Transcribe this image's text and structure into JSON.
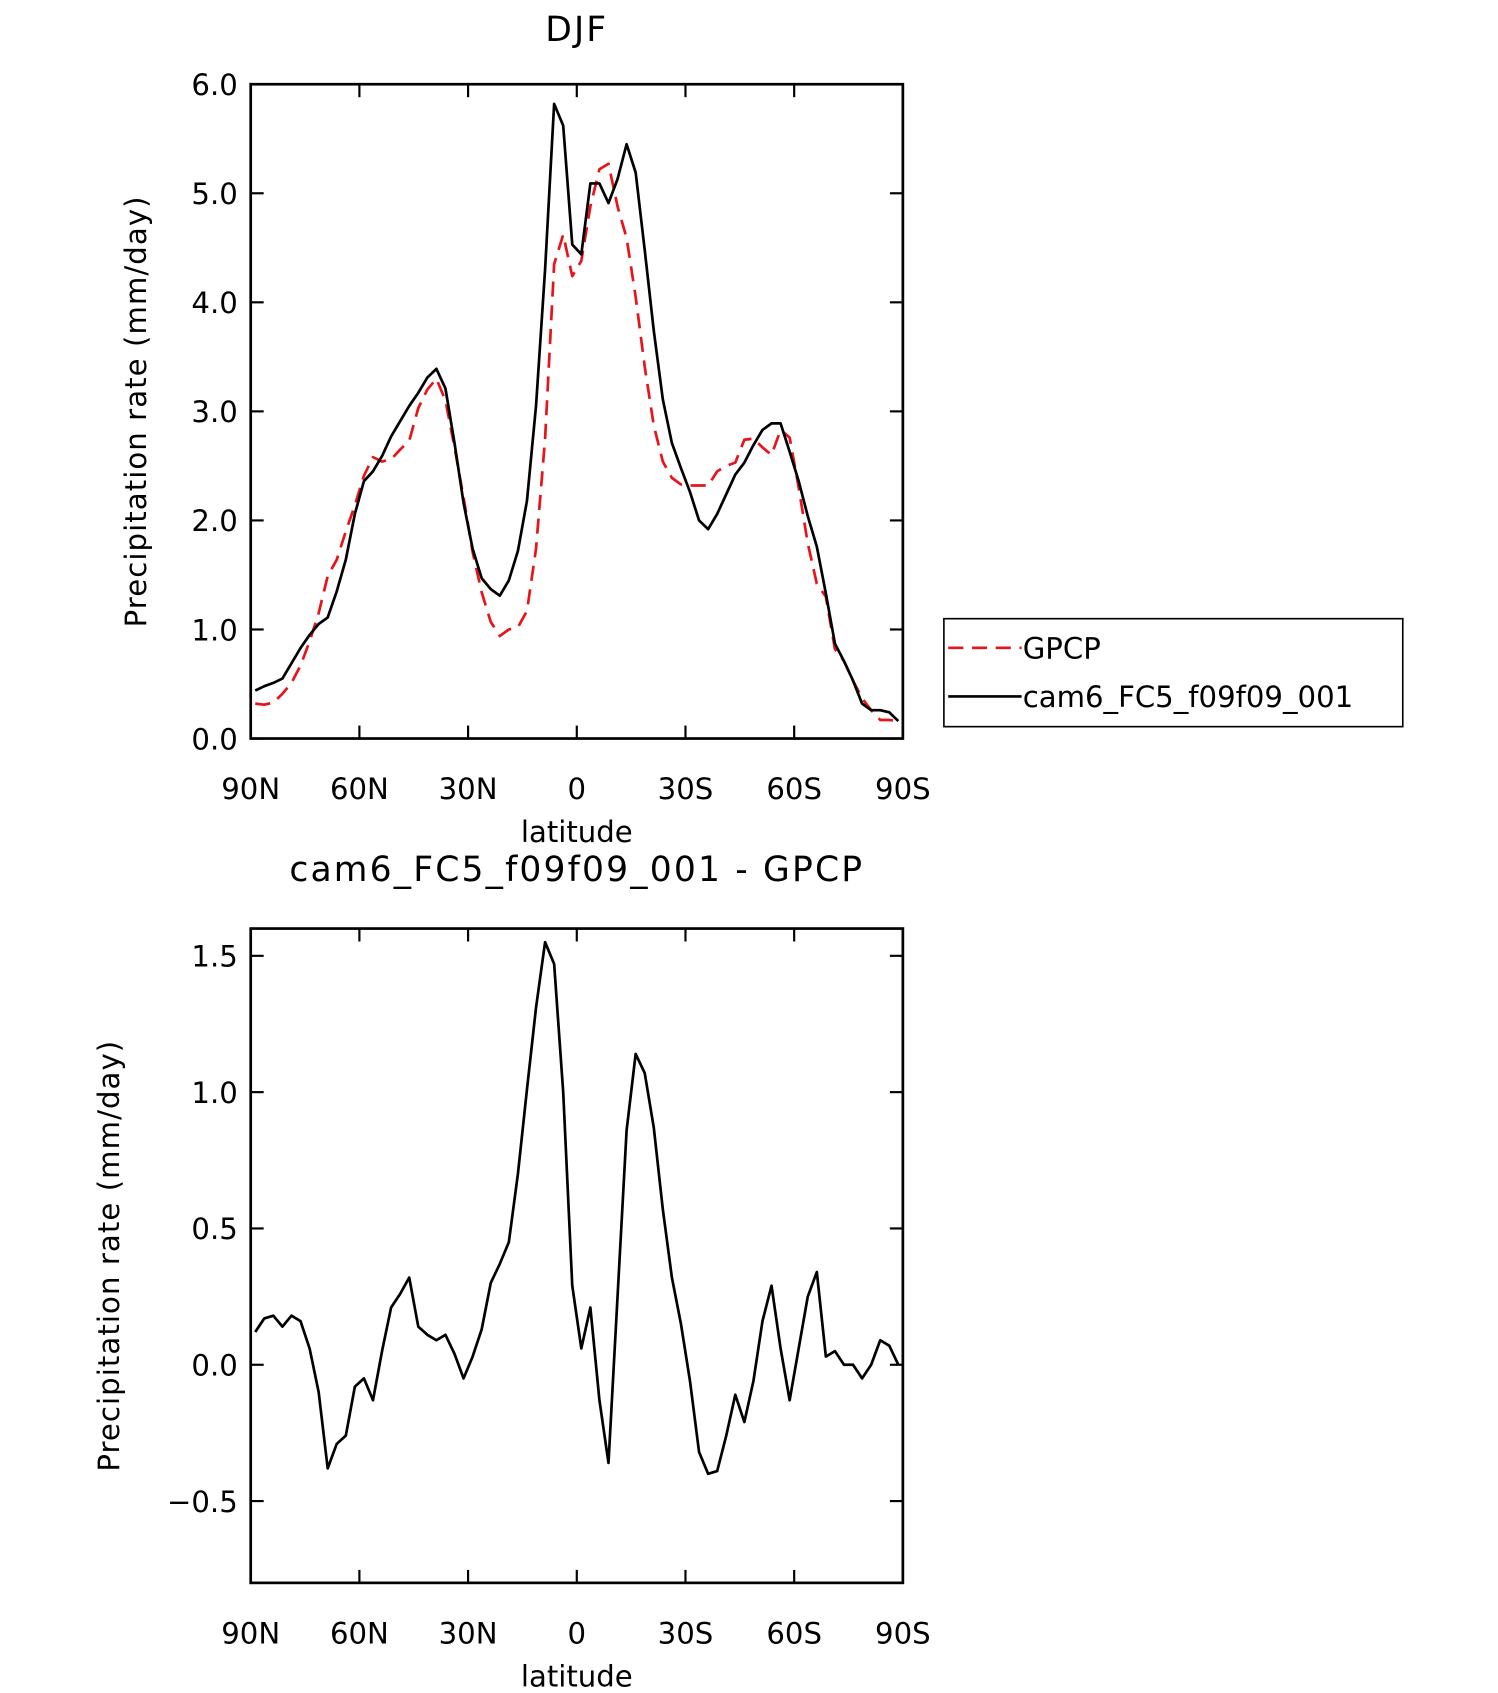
{
  "chart_data": [
    {
      "type": "line",
      "title": "DJF",
      "xlabel": "latitude",
      "ylabel": "Precipitation rate (mm/day)",
      "x": [
        88.75,
        86.25,
        83.75,
        81.25,
        78.75,
        76.25,
        73.75,
        71.25,
        68.75,
        66.25,
        63.75,
        61.25,
        58.75,
        56.25,
        53.75,
        51.25,
        48.75,
        46.25,
        43.75,
        41.25,
        38.75,
        36.25,
        33.75,
        31.25,
        28.75,
        26.25,
        23.75,
        21.25,
        18.75,
        16.25,
        13.75,
        11.25,
        8.75,
        6.25,
        3.75,
        1.25,
        -1.25,
        -3.75,
        -6.25,
        -8.75,
        -11.25,
        -13.75,
        -16.25,
        -18.75,
        -21.25,
        -23.75,
        -26.25,
        -28.75,
        -31.25,
        -33.75,
        -36.25,
        -38.75,
        -41.25,
        -43.75,
        -46.25,
        -48.75,
        -51.25,
        -53.75,
        -56.25,
        -58.75,
        -61.25,
        -63.75,
        -66.25,
        -68.75,
        -71.25,
        -73.75,
        -76.25,
        -78.75,
        -81.25,
        -83.75,
        -86.25,
        -88.75
      ],
      "series": [
        {
          "name": "GPCP",
          "color": "#e8141a",
          "linestyle": "dashed",
          "values": [
            0.32,
            0.31,
            0.33,
            0.41,
            0.51,
            0.67,
            0.89,
            1.15,
            1.49,
            1.64,
            1.9,
            2.14,
            2.41,
            2.58,
            2.54,
            2.56,
            2.65,
            2.73,
            3.03,
            3.2,
            3.3,
            3.1,
            2.67,
            2.21,
            1.71,
            1.34,
            1.07,
            0.94,
            1.0,
            1.02,
            1.17,
            1.74,
            2.75,
            4.35,
            4.62,
            4.24,
            4.38,
            4.88,
            5.22,
            5.27,
            4.88,
            4.59,
            4.05,
            3.41,
            2.87,
            2.54,
            2.39,
            2.33,
            2.32,
            2.32,
            2.32,
            2.45,
            2.5,
            2.53,
            2.74,
            2.75,
            2.67,
            2.6,
            2.83,
            2.76,
            2.3,
            1.79,
            1.42,
            1.3,
            0.82,
            0.71,
            0.53,
            0.37,
            0.26,
            0.17,
            0.17,
            0.16
          ]
        },
        {
          "name": "cam6_FC5_f09f09_001",
          "color": "#000000",
          "linestyle": "solid",
          "values": [
            0.44,
            0.48,
            0.51,
            0.55,
            0.69,
            0.83,
            0.95,
            1.05,
            1.11,
            1.35,
            1.64,
            2.06,
            2.36,
            2.45,
            2.59,
            2.77,
            2.91,
            3.05,
            3.17,
            3.31,
            3.39,
            3.21,
            2.71,
            2.16,
            1.74,
            1.47,
            1.37,
            1.31,
            1.45,
            1.72,
            2.18,
            3.05,
            4.3,
            5.82,
            5.62,
            4.53,
            4.44,
            5.09,
            5.09,
            4.91,
            5.13,
            5.45,
            5.19,
            4.48,
            3.74,
            3.11,
            2.71,
            2.48,
            2.26,
            2.0,
            1.92,
            2.06,
            2.24,
            2.42,
            2.53,
            2.69,
            2.83,
            2.89,
            2.89,
            2.63,
            2.36,
            2.04,
            1.76,
            1.33,
            0.87,
            0.71,
            0.53,
            0.32,
            0.26,
            0.26,
            0.24,
            0.16
          ]
        }
      ],
      "xlim": [
        90,
        -90
      ],
      "xticks": [
        {
          "value": 90,
          "label": "90N"
        },
        {
          "value": 60,
          "label": "60N"
        },
        {
          "value": 30,
          "label": "30N"
        },
        0,
        {
          "value": -30,
          "label": "30S"
        },
        {
          "value": -60,
          "label": "60S"
        },
        {
          "value": -90,
          "label": "90S"
        }
      ],
      "ylim": [
        0,
        6
      ],
      "yticks": [
        {
          "value": 0,
          "label": "0.0"
        },
        {
          "value": 1,
          "label": "1.0"
        },
        {
          "value": 2,
          "label": "2.0"
        },
        {
          "value": 3,
          "label": "3.0"
        },
        {
          "value": 4,
          "label": "4.0"
        },
        {
          "value": 5,
          "label": "5.0"
        },
        {
          "value": 6,
          "label": "6.0"
        }
      ],
      "legend": "right"
    },
    {
      "type": "line",
      "title": "cam6_FC5_f09f09_001 - GPCP",
      "xlabel": "latitude",
      "ylabel": "Precipitation rate (mm/day)",
      "x": [
        88.75,
        86.25,
        83.75,
        81.25,
        78.75,
        76.25,
        73.75,
        71.25,
        68.75,
        66.25,
        63.75,
        61.25,
        58.75,
        56.25,
        53.75,
        51.25,
        48.75,
        46.25,
        43.75,
        41.25,
        38.75,
        36.25,
        33.75,
        31.25,
        28.75,
        26.25,
        23.75,
        21.25,
        18.75,
        16.25,
        13.75,
        11.25,
        8.75,
        6.25,
        3.75,
        1.25,
        -1.25,
        -3.75,
        -6.25,
        -8.75,
        -11.25,
        -13.75,
        -16.25,
        -18.75,
        -21.25,
        -23.75,
        -26.25,
        -28.75,
        -31.25,
        -33.75,
        -36.25,
        -38.75,
        -41.25,
        -43.75,
        -46.25,
        -48.75,
        -51.25,
        -53.75,
        -56.25,
        -58.75,
        -61.25,
        -63.75,
        -66.25,
        -68.75,
        -71.25,
        -73.75,
        -76.25,
        -78.75,
        -81.25,
        -83.75,
        -86.25,
        -88.75
      ],
      "series": [
        {
          "color": "#000000",
          "linestyle": "solid",
          "values": [
            0.12,
            0.17,
            0.18,
            0.14,
            0.18,
            0.16,
            0.06,
            -0.1,
            -0.38,
            -0.29,
            -0.26,
            -0.08,
            -0.05,
            -0.13,
            0.05,
            0.21,
            0.26,
            0.32,
            0.14,
            0.11,
            0.09,
            0.11,
            0.04,
            -0.05,
            0.03,
            0.13,
            0.3,
            0.37,
            0.45,
            0.7,
            1.01,
            1.31,
            1.55,
            1.47,
            1.0,
            0.29,
            0.06,
            0.21,
            -0.13,
            -0.36,
            0.25,
            0.86,
            1.14,
            1.07,
            0.87,
            0.57,
            0.32,
            0.15,
            -0.06,
            -0.32,
            -0.4,
            -0.39,
            -0.26,
            -0.11,
            -0.21,
            -0.06,
            0.16,
            0.29,
            0.06,
            -0.13,
            0.06,
            0.25,
            0.34,
            0.03,
            0.05,
            0.0,
            0.0,
            -0.05,
            0.0,
            0.09,
            0.07,
            0.0
          ]
        }
      ],
      "xlim": [
        90,
        -90
      ],
      "xticks": [
        {
          "value": 90,
          "label": "90N"
        },
        {
          "value": 60,
          "label": "60N"
        },
        {
          "value": 30,
          "label": "30N"
        },
        0,
        {
          "value": -30,
          "label": "30S"
        },
        {
          "value": -60,
          "label": "60S"
        },
        {
          "value": -90,
          "label": "90S"
        }
      ],
      "ylim": [
        -0.8,
        1.6
      ],
      "yticks": [
        {
          "value": -0.5,
          "label": "−0.5"
        },
        {
          "value": 0,
          "label": "0.0"
        },
        {
          "value": 0.5,
          "label": "0.5"
        },
        {
          "value": 1,
          "label": "1.0"
        },
        {
          "value": 1.5,
          "label": "1.5"
        }
      ]
    }
  ]
}
